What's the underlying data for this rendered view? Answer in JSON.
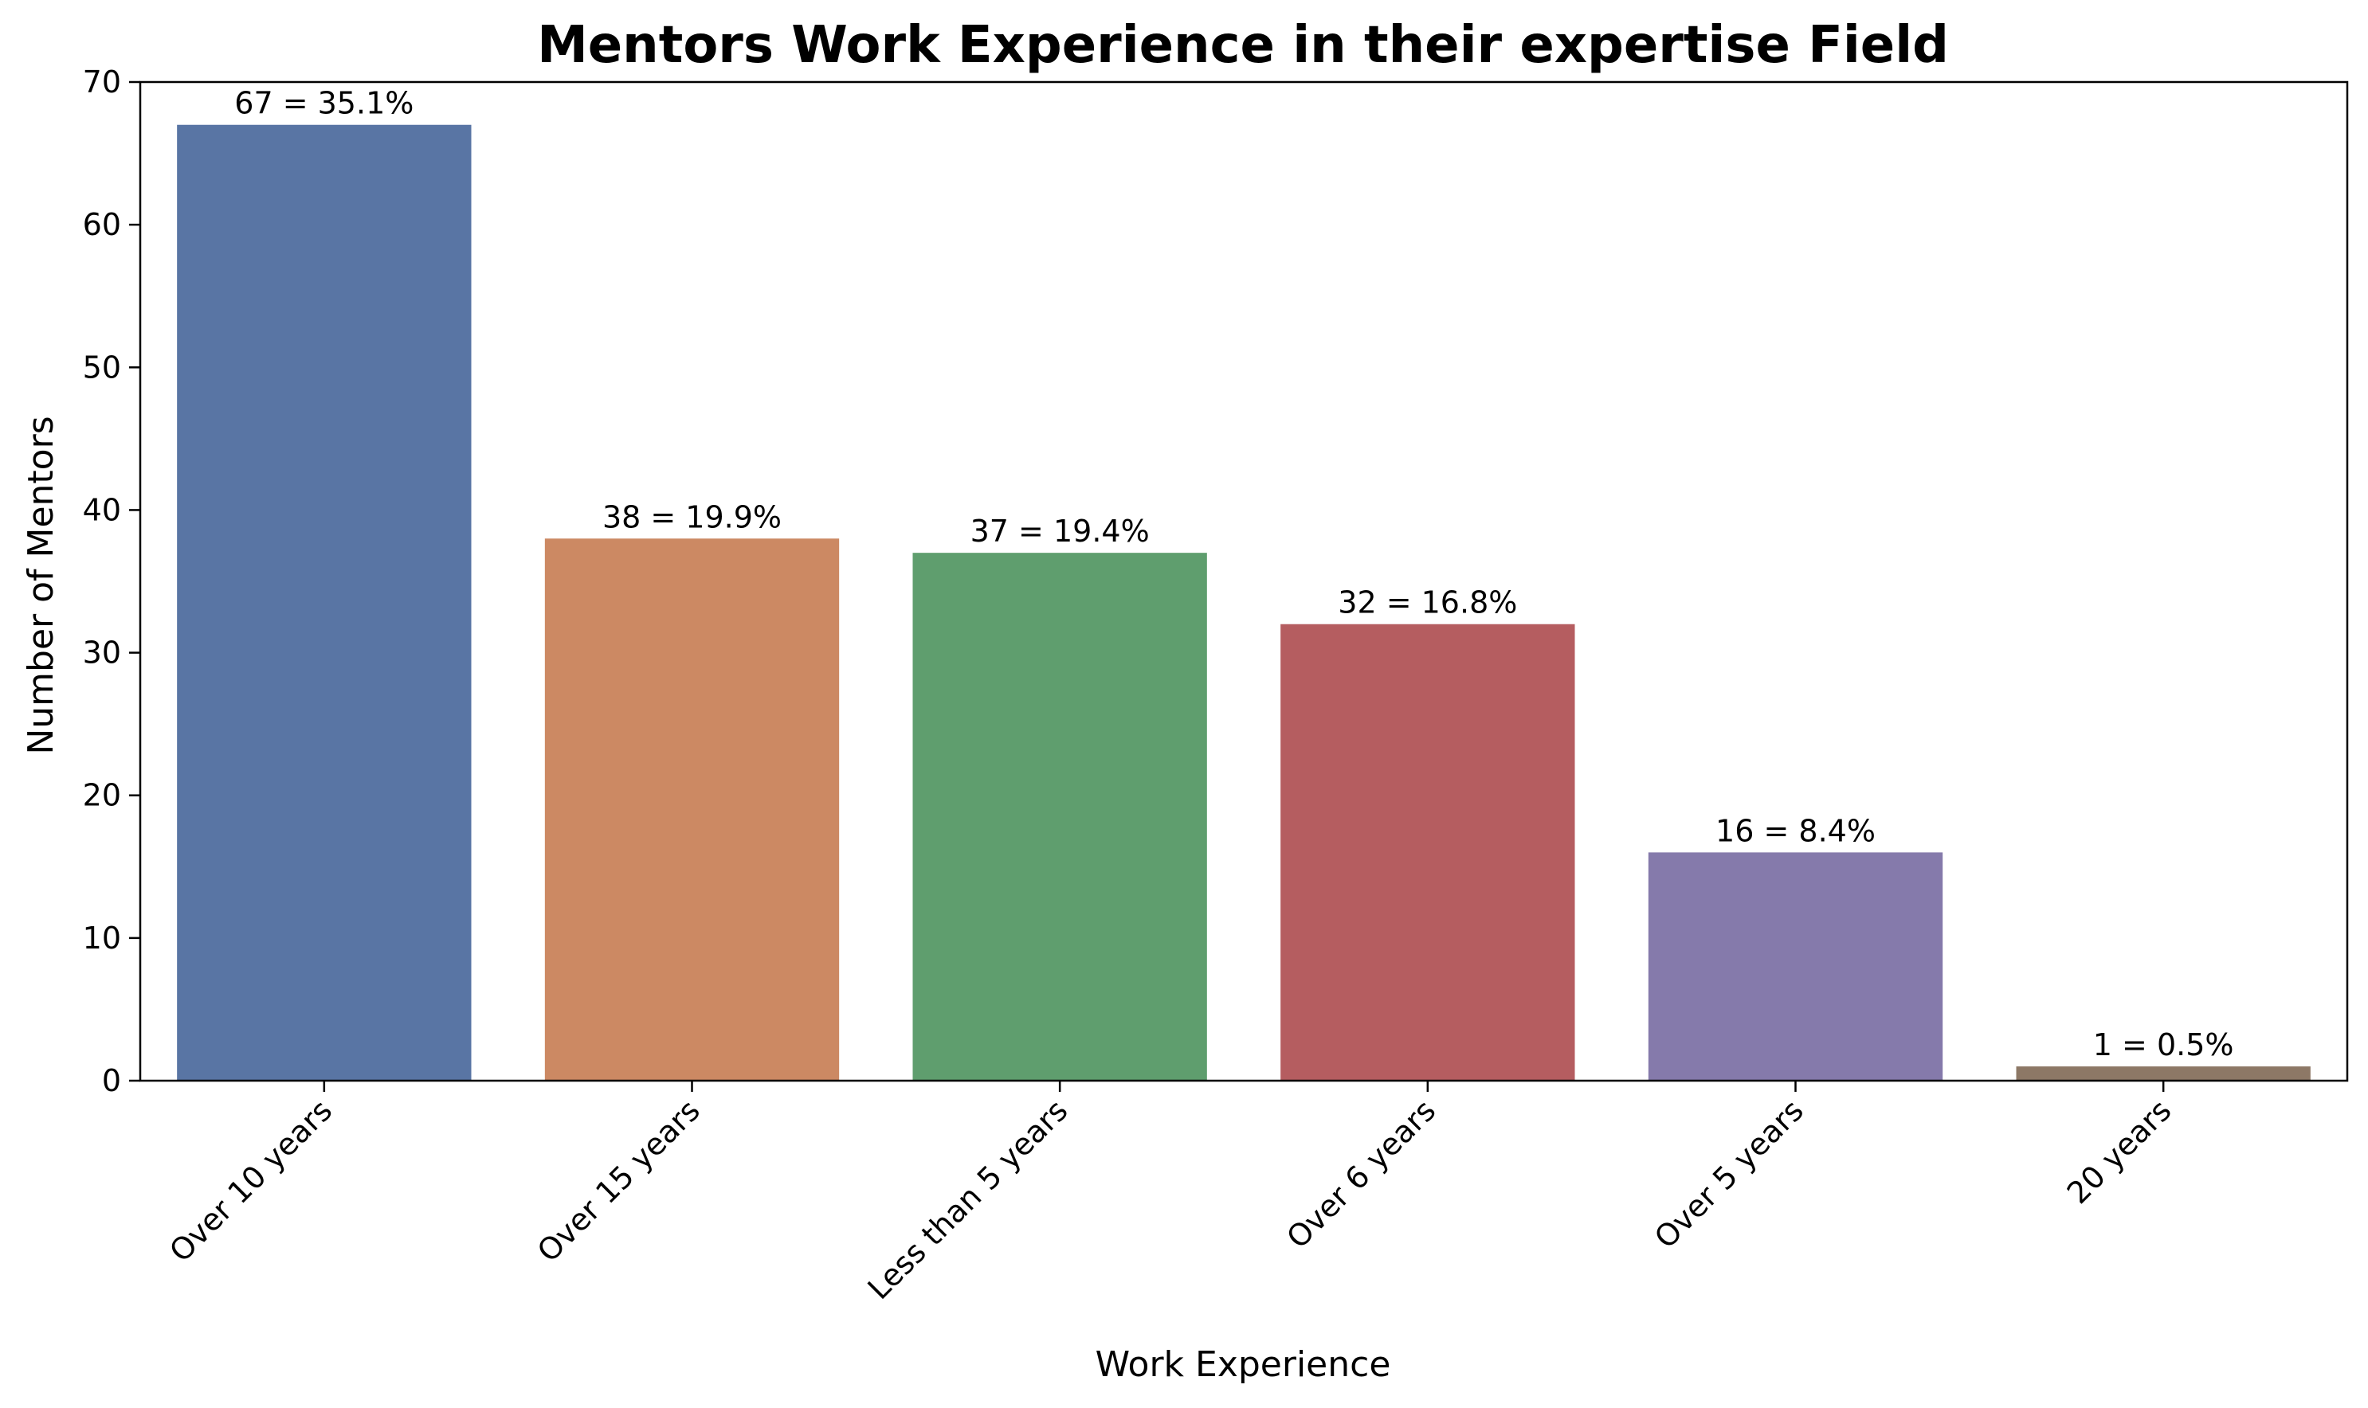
{
  "chart_data": {
    "type": "bar",
    "title": "Mentors Work Experience in their expertise Field",
    "xlabel": "Work Experience",
    "ylabel": "Number of Mentors",
    "categories": [
      "Over 10 years",
      "Over 15 years",
      "Less than 5 years",
      "Over 6 years",
      "Over 5 years",
      "20 years"
    ],
    "values": [
      67,
      38,
      37,
      32,
      16,
      1
    ],
    "data_labels": [
      "67 = 35.1%",
      "38 = 19.9%",
      "37 = 19.4%",
      "32 = 16.8%",
      "16 = 8.4%",
      "1 = 0.5%"
    ],
    "colors": [
      "#5975a4",
      "#cc8963",
      "#5f9e6e",
      "#b55d60",
      "#857aab",
      "#8d7866"
    ],
    "ylim": [
      0,
      70
    ],
    "yticks": [
      0,
      10,
      20,
      30,
      40,
      50,
      60,
      70
    ],
    "grid": false,
    "legend": "none"
  }
}
